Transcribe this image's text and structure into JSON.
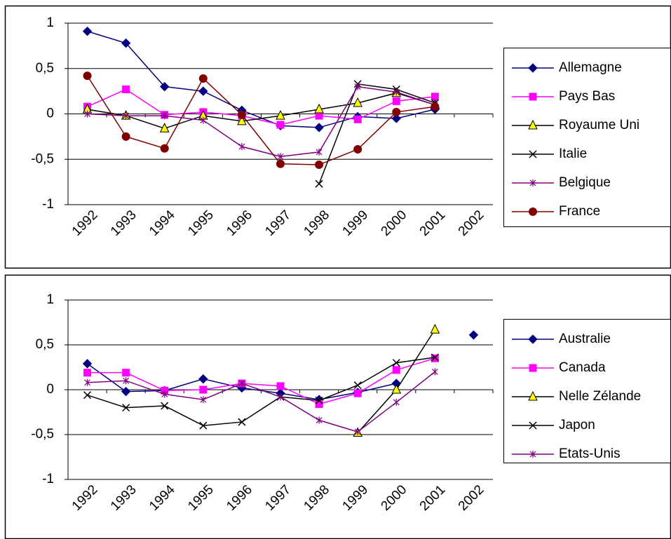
{
  "chart_data": [
    {
      "type": "line",
      "categories": [
        "1992",
        "1993",
        "1994",
        "1995",
        "1996",
        "1997",
        "1998",
        "1999",
        "2000",
        "2001",
        "2002"
      ],
      "ylim": [
        -1,
        1
      ],
      "yticks": [
        -1,
        {
          "value": -0.5,
          "label": "-0,5"
        },
        0,
        {
          "value": 0.5,
          "label": "0,5"
        },
        1
      ],
      "grid": true,
      "legend": "right",
      "series": [
        {
          "name": "Allemagne",
          "color": "#000080",
          "marker": "diamond",
          "marker_color": "#000080",
          "values": [
            0.91,
            0.78,
            0.3,
            0.25,
            0.04,
            -0.13,
            -0.15,
            -0.03,
            -0.05,
            0.05,
            null
          ]
        },
        {
          "name": "Pays Bas",
          "color": "#ff00ff",
          "marker": "square",
          "marker_color": "#ff00ff",
          "values": [
            0.08,
            0.27,
            -0.01,
            0.02,
            -0.02,
            -0.12,
            -0.02,
            -0.06,
            0.14,
            0.19,
            null
          ]
        },
        {
          "name": "Royaume Uni",
          "color": "#000000",
          "marker": "triangle",
          "marker_color": "#ffff00",
          "values": [
            0.05,
            -0.02,
            -0.16,
            -0.02,
            -0.08,
            -0.02,
            0.05,
            0.12,
            0.23,
            0.1,
            null
          ]
        },
        {
          "name": "Italie",
          "color": "#000000",
          "marker": "x",
          "marker_color": "#000000",
          "values": [
            null,
            null,
            null,
            null,
            null,
            null,
            -0.77,
            0.33,
            0.27,
            0.12,
            null
          ]
        },
        {
          "name": "Belgique",
          "color": "#800080",
          "marker": "star",
          "marker_color": "#800080",
          "values": [
            0,
            -0.02,
            -0.02,
            -0.07,
            -0.36,
            -0.47,
            -0.42,
            0.3,
            0.24,
            0.1,
            null
          ]
        },
        {
          "name": "France",
          "color": "#800000",
          "marker": "circle",
          "marker_color": "#800000",
          "values": [
            0.42,
            -0.25,
            -0.38,
            0.39,
            -0.01,
            -0.55,
            -0.56,
            -0.39,
            0.02,
            0.08,
            null
          ]
        }
      ]
    },
    {
      "type": "line",
      "categories": [
        "1992",
        "1993",
        "1994",
        "1995",
        "1996",
        "1997",
        "1998",
        "1999",
        "2000",
        "2001",
        "2002"
      ],
      "ylim": [
        -1,
        1
      ],
      "yticks": [
        -1,
        {
          "value": -0.5,
          "label": "-0,5"
        },
        0,
        {
          "value": 0.5,
          "label": "0,5"
        },
        1
      ],
      "grid": true,
      "legend": "right",
      "series": [
        {
          "name": "Australie",
          "color": "#000080",
          "marker": "diamond",
          "marker_color": "#000080",
          "values": [
            0.29,
            -0.02,
            -0.01,
            0.12,
            0.02,
            -0.04,
            -0.11,
            -0.03,
            0.07,
            null,
            0.61
          ]
        },
        {
          "name": "Canada",
          "color": "#ff00ff",
          "marker": "square",
          "marker_color": "#ff00ff",
          "values": [
            0.19,
            0.19,
            -0.01,
            0,
            0.07,
            0.04,
            -0.16,
            -0.04,
            0.22,
            0.35,
            null
          ]
        },
        {
          "name": "Nelle Zélande",
          "color": "#000000",
          "marker": "triangle",
          "marker_color": "#ffff00",
          "values": [
            null,
            null,
            null,
            null,
            null,
            null,
            null,
            -0.48,
            0,
            0.67,
            null
          ]
        },
        {
          "name": "Japon",
          "color": "#000000",
          "marker": "x",
          "marker_color": "#000000",
          "values": [
            -0.06,
            -0.2,
            -0.18,
            -0.4,
            -0.36,
            -0.08,
            -0.12,
            0.05,
            0.3,
            0.36,
            null
          ]
        },
        {
          "name": "Etats-Unis",
          "color": "#800080",
          "marker": "star",
          "marker_color": "#800080",
          "values": [
            0.08,
            0.1,
            -0.05,
            -0.11,
            0.07,
            -0.08,
            -0.34,
            -0.47,
            -0.14,
            0.2,
            null
          ]
        }
      ]
    }
  ]
}
